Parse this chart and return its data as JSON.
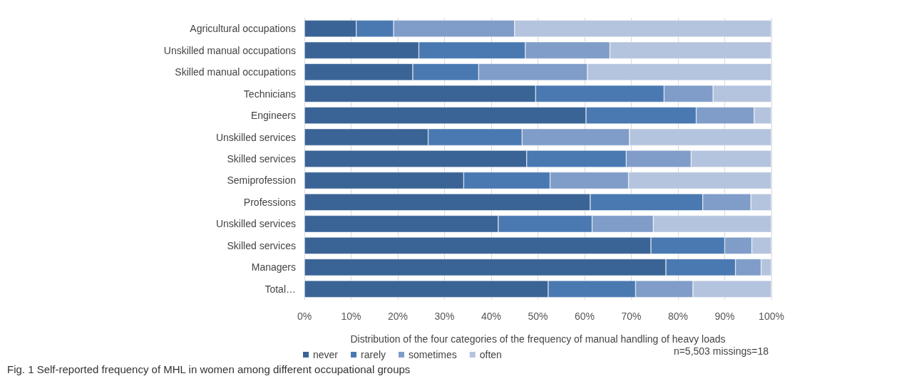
{
  "chart_data": {
    "type": "bar",
    "orientation": "horizontal",
    "stacked": true,
    "xlabel": "Distribution of the four categories of the frequency of manual handling of heavy loads",
    "categories": [
      "Agricultural occupations",
      "Unskilled manual occupations",
      "Skilled manual occupations",
      "Technicians",
      "Engineers",
      "Unskilled services",
      "Skilled services",
      "Semiprofession",
      "Professions",
      "Unskilled services",
      "Skilled services",
      "Managers",
      "Total…"
    ],
    "series": [
      {
        "name": "never",
        "color": "#3b6496",
        "values": [
          11.1,
          24.5,
          23.2,
          49.5,
          60.3,
          26.5,
          47.6,
          34.1,
          61.2,
          41.5,
          74.2,
          77.4,
          52.2
        ]
      },
      {
        "name": "rarely",
        "color": "#4a79b2",
        "values": [
          8.0,
          22.8,
          14.1,
          27.5,
          23.6,
          20.1,
          21.3,
          18.5,
          24.1,
          20.1,
          15.8,
          14.9,
          18.7
        ]
      },
      {
        "name": "sometimes",
        "color": "#7f9dc8",
        "values": [
          25.9,
          18.1,
          23.3,
          10.5,
          12.4,
          23.0,
          13.9,
          16.8,
          10.3,
          13.1,
          5.8,
          5.5,
          12.3
        ]
      },
      {
        "name": "often",
        "color": "#b5c4de",
        "values": [
          55.0,
          34.6,
          39.4,
          12.5,
          3.7,
          30.4,
          17.2,
          30.6,
          4.4,
          25.3,
          4.2,
          2.2,
          16.8
        ]
      }
    ],
    "xlim": [
      0,
      100
    ],
    "xticks": [
      {
        "value": 0,
        "label": "0%"
      },
      {
        "value": 10,
        "label": "10%"
      },
      {
        "value": 20,
        "label": "20%"
      },
      {
        "value": 30,
        "label": "30%"
      },
      {
        "value": 40,
        "label": "40%"
      },
      {
        "value": 50,
        "label": "50%"
      },
      {
        "value": 60,
        "label": "60%"
      },
      {
        "value": 70,
        "label": "70%"
      },
      {
        "value": 80,
        "label": "80%"
      },
      {
        "value": 90,
        "label": "90%"
      },
      {
        "value": 100,
        "label": "100%"
      }
    ],
    "grid": "x",
    "legend": "bottom",
    "annotations": [
      "n=5,503 missings=18",
      "Fig. 1 Self-reported frequency of MHL in women among different occupational groups"
    ]
  }
}
